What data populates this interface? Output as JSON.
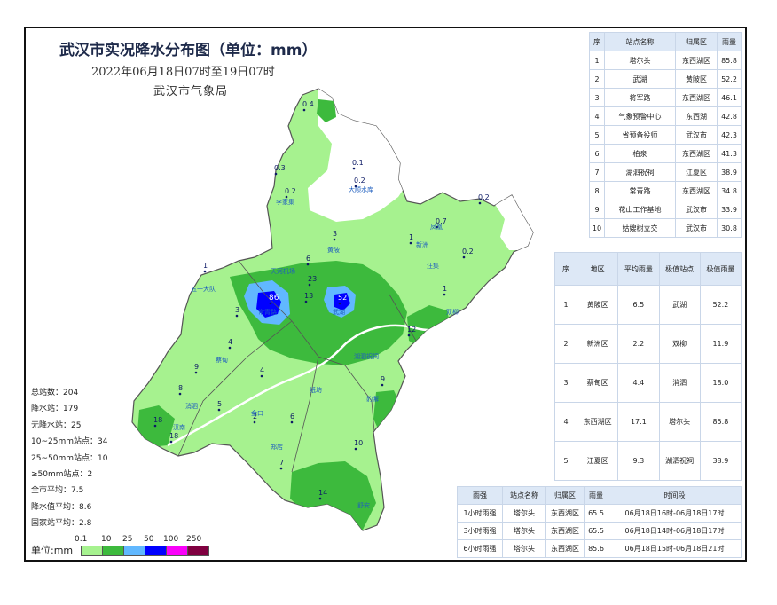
{
  "title": "武汉市实况降水分布图（单位：mm）",
  "subtitle": "2022年06月18日07时至19日07时",
  "bureau": "武汉市气象局",
  "stats": [
    "总站数：204",
    "降水站：179",
    "无降水站：25",
    "10~25mm站点：34",
    "25~50mm站点：10",
    "≥50mm站点：2",
    "全市平均：7.5",
    "降水值平均：8.6",
    "国家站平均：2.8"
  ],
  "legend": {
    "unit_label": "单位:mm",
    "ticks": [
      "0.1",
      "10",
      "25",
      "50",
      "100",
      "250"
    ],
    "colors": [
      "#a6f28f",
      "#3dba3d",
      "#61b8ff",
      "#0000ff",
      "#fa00fa",
      "#800040"
    ]
  },
  "map_colors": {
    "no_rain": "#ffffff",
    "light": "#a6f28f",
    "moderate": "#3dba3d",
    "heavy": "#61b8ff",
    "rainstorm": "#0000ff",
    "border": "#555555",
    "station_label": "#1f5fbf",
    "value": "#0d1a66"
  },
  "map_values": [
    {
      "text": "0.4"
    },
    {
      "text": "0.1"
    },
    {
      "text": "0.3"
    },
    {
      "text": "0.2"
    },
    {
      "text": "0.2"
    },
    {
      "text": "0.2"
    },
    {
      "text": "0.7"
    },
    {
      "text": "0.2"
    },
    {
      "text": "86"
    },
    {
      "text": "52"
    },
    {
      "text": "23"
    },
    {
      "text": "18"
    },
    {
      "text": "18"
    },
    {
      "text": "14"
    },
    {
      "text": "12"
    },
    {
      "text": "13"
    },
    {
      "text": "10"
    },
    {
      "text": "9"
    },
    {
      "text": "8"
    },
    {
      "text": "6"
    },
    {
      "text": "4"
    },
    {
      "text": "7"
    },
    {
      "text": "3"
    },
    {
      "text": "1"
    },
    {
      "text": "2"
    },
    {
      "text": "5"
    },
    {
      "text": "1"
    },
    {
      "text": "9"
    },
    {
      "text": "4"
    },
    {
      "text": "6"
    },
    {
      "text": "3"
    },
    {
      "text": "1"
    }
  ],
  "map_places": [
    {
      "text": "五一大队"
    },
    {
      "text": "大顺水库"
    },
    {
      "text": "李家集"
    },
    {
      "text": "天河机场"
    },
    {
      "text": "黄陂"
    },
    {
      "text": "新洲"
    },
    {
      "text": "汪集"
    },
    {
      "text": "双柳"
    },
    {
      "text": "武湖"
    },
    {
      "text": "常青路"
    },
    {
      "text": "湖泗祝祠"
    },
    {
      "text": "汉南"
    },
    {
      "text": "蔡甸"
    },
    {
      "text": "消泗"
    },
    {
      "text": "金口"
    },
    {
      "text": "郑店"
    },
    {
      "text": "纸坊"
    },
    {
      "text": "豹澥"
    },
    {
      "text": "舒安"
    },
    {
      "text": "凤凰"
    }
  ],
  "table_stations": {
    "headers": [
      "序",
      "站点名称",
      "归属区",
      "雨量"
    ],
    "rows": [
      [
        "1",
        "塔尔头",
        "东西湖区",
        "85.8"
      ],
      [
        "2",
        "武湖",
        "黄陂区",
        "52.2"
      ],
      [
        "3",
        "将军路",
        "东西湖区",
        "46.1"
      ],
      [
        "4",
        "气象预警中心",
        "东西湖",
        "42.8"
      ],
      [
        "5",
        "省预备役师",
        "武汉市",
        "42.3"
      ],
      [
        "6",
        "柏泉",
        "东西湖区",
        "41.3"
      ],
      [
        "7",
        "湖泗祝祠",
        "江夏区",
        "38.9"
      ],
      [
        "8",
        "常青路",
        "东西湖区",
        "34.8"
      ],
      [
        "9",
        "花山工作基地",
        "武汉市",
        "33.9"
      ],
      [
        "10",
        "姑嫂树立交",
        "武汉市",
        "30.8"
      ]
    ]
  },
  "table_districts": {
    "headers": [
      "序",
      "地区",
      "平均雨量",
      "极值站点",
      "极值雨量"
    ],
    "rows": [
      [
        "1",
        "黄陂区",
        "6.5",
        "武湖",
        "52.2"
      ],
      [
        "2",
        "新洲区",
        "2.2",
        "双柳",
        "11.9"
      ],
      [
        "3",
        "蔡甸区",
        "4.4",
        "消泗",
        "18.0"
      ],
      [
        "4",
        "东西湖区",
        "17.1",
        "塔尔头",
        "85.8"
      ],
      [
        "5",
        "江夏区",
        "9.3",
        "湖泗祝祠",
        "38.9"
      ]
    ]
  },
  "table_intensity": {
    "headers": [
      "雨强",
      "站点名称",
      "归属区",
      "雨量",
      "时间段"
    ],
    "rows": [
      [
        "1小时雨强",
        "塔尔头",
        "东西湖区",
        "65.5",
        "06月18日16时-06月18日17时"
      ],
      [
        "3小时雨强",
        "塔尔头",
        "东西湖区",
        "65.5",
        "06月18日14时-06月18日17时"
      ],
      [
        "6小时雨强",
        "塔尔头",
        "东西湖区",
        "85.6",
        "06月18日15时-06月18日21时"
      ]
    ]
  }
}
